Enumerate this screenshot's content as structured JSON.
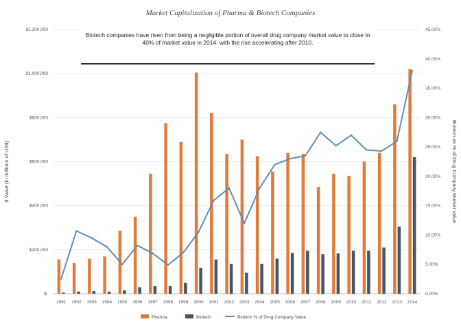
{
  "chart_data": {
    "type": "bar",
    "title": "Market Capitalization of Pharma & Biotech Companies",
    "annotation": "Biotech companies have risen from being a negligible portion of overall drug company market value to close to 40% of market value in 2014, with the rise accelerating after 2010.",
    "categories": [
      "1991",
      "1992",
      "1993",
      "1994",
      "1995",
      "1996",
      "1997",
      "1998",
      "1999",
      "2000",
      "2001",
      "2002",
      "2003",
      "2004",
      "2005",
      "2006",
      "2007",
      "2008",
      "2009",
      "2010",
      "2011",
      "2012",
      "2013",
      "2014"
    ],
    "series": [
      {
        "name": "Pharma",
        "type": "bar",
        "axis": "left",
        "color": "#e07b39",
        "values": [
          155000,
          140000,
          160000,
          170000,
          285000,
          350000,
          545000,
          775000,
          690000,
          1005000,
          820000,
          635000,
          700000,
          625000,
          555000,
          640000,
          635000,
          485000,
          545000,
          535000,
          600000,
          640000,
          860000,
          1020000
        ]
      },
      {
        "name": "Biotech",
        "type": "bar",
        "axis": "left",
        "color": "#44546a",
        "values": [
          5000,
          10000,
          12000,
          10000,
          15000,
          30000,
          35000,
          35000,
          50000,
          118000,
          155000,
          135000,
          95000,
          135000,
          160000,
          185000,
          195000,
          180000,
          183000,
          195000,
          195000,
          210000,
          305000,
          620000
        ]
      },
      {
        "name": "Biotech % of Drug Company Value",
        "type": "line",
        "axis": "right",
        "color": "#5b8db8",
        "values": [
          2.5,
          10.7,
          9.5,
          8.0,
          5.0,
          8.2,
          6.9,
          4.9,
          7.0,
          10.5,
          15.9,
          18.0,
          12.0,
          18.0,
          22.0,
          23.0,
          23.5,
          27.5,
          25.2,
          27.0,
          24.5,
          24.3,
          26.0,
          38.0
        ]
      }
    ],
    "ylabel": "$ Value (in millions of US$)",
    "y2label": "Biotech as % of Drug Company Market Value",
    "ylim": [
      0,
      1200000
    ],
    "y2lim": [
      0,
      45
    ],
    "yticks": [
      "$-",
      "$200,000",
      "$400,000",
      "$600,000",
      "$800,000",
      "$1,000,000",
      "$1,200,000"
    ],
    "y2ticks": [
      "0.00%",
      "5.00%",
      "10.00%",
      "15.00%",
      "20.00%",
      "25.00%",
      "30.00%",
      "35.00%",
      "40.00%",
      "45.00%"
    ],
    "grid": true,
    "legend_position": "bottom"
  }
}
